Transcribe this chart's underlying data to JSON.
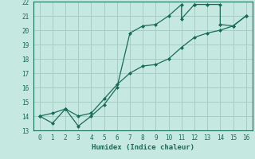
{
  "title": "",
  "xlabel": "Humidex (Indice chaleur)",
  "ylabel": "",
  "bg_color": "#c5e8e0",
  "grid_color": "#a8cdc5",
  "line_color": "#1a6b5a",
  "xlim": [
    -0.5,
    16.5
  ],
  "ylim": [
    13,
    22
  ],
  "xticks": [
    0,
    1,
    2,
    3,
    4,
    5,
    6,
    7,
    8,
    9,
    10,
    11,
    12,
    13,
    14,
    15,
    16
  ],
  "yticks": [
    13,
    14,
    15,
    16,
    17,
    18,
    19,
    20,
    21,
    22
  ],
  "series1_x": [
    0,
    1,
    2,
    3,
    4,
    5,
    6,
    7,
    8,
    9,
    10,
    11,
    11,
    12,
    12,
    13,
    14,
    14,
    15,
    16
  ],
  "series1_y": [
    14.0,
    13.5,
    14.5,
    13.3,
    14.0,
    14.8,
    16.0,
    19.8,
    20.3,
    20.4,
    21.0,
    21.8,
    20.8,
    21.8,
    21.8,
    21.8,
    21.8,
    20.4,
    20.3,
    21.0
  ],
  "series2_x": [
    0,
    1,
    2,
    3,
    4,
    5,
    6,
    7,
    8,
    9,
    10,
    11,
    12,
    13,
    14,
    15,
    16
  ],
  "series2_y": [
    14.0,
    14.2,
    14.5,
    14.0,
    14.2,
    15.2,
    16.2,
    17.0,
    17.5,
    17.6,
    18.0,
    18.8,
    19.5,
    19.8,
    20.0,
    20.3,
    21.0
  ]
}
